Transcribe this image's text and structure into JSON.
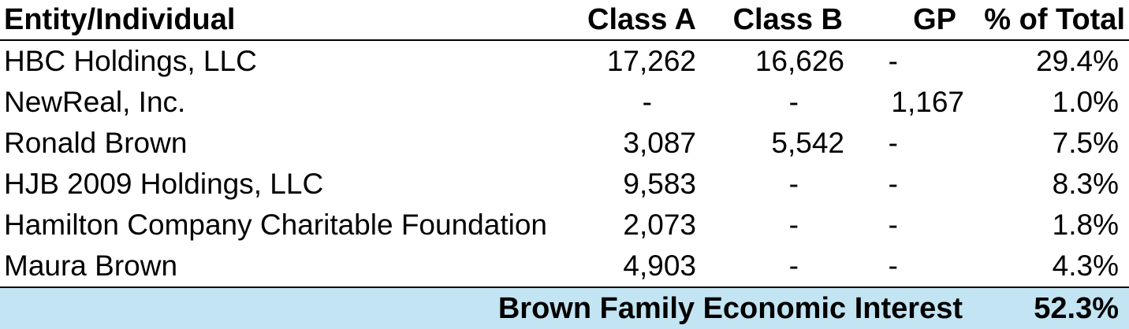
{
  "colors": {
    "footer_highlight_bg": "#C3E4F2",
    "rule_color": "#000000",
    "text_color": "#000000",
    "page_bg": "#FFFFFF"
  },
  "table": {
    "columns": [
      {
        "label": "Entity/Individual"
      },
      {
        "label": "Class A"
      },
      {
        "label": "Class B"
      },
      {
        "label": "GP"
      },
      {
        "label": "% of Total"
      }
    ],
    "rows": [
      [
        "HBC Holdings, LLC",
        "17,262",
        "16,626",
        "-",
        "29.4%"
      ],
      [
        "NewReal, Inc.",
        "-",
        "-",
        "1,167",
        "1.0%"
      ],
      [
        "Ronald Brown",
        "3,087",
        "5,542",
        "-",
        "7.5%"
      ],
      [
        "HJB 2009 Holdings, LLC",
        "9,583",
        "-",
        "-",
        "8.3%"
      ],
      [
        "Hamilton Company Charitable Foundation",
        "2,073",
        "-",
        "-",
        "1.8%"
      ],
      [
        "Maura Brown",
        "4,903",
        "-",
        "-",
        "4.3%"
      ]
    ],
    "footer": {
      "label": "Brown Family Economic Interest",
      "value": "52.3%"
    }
  }
}
